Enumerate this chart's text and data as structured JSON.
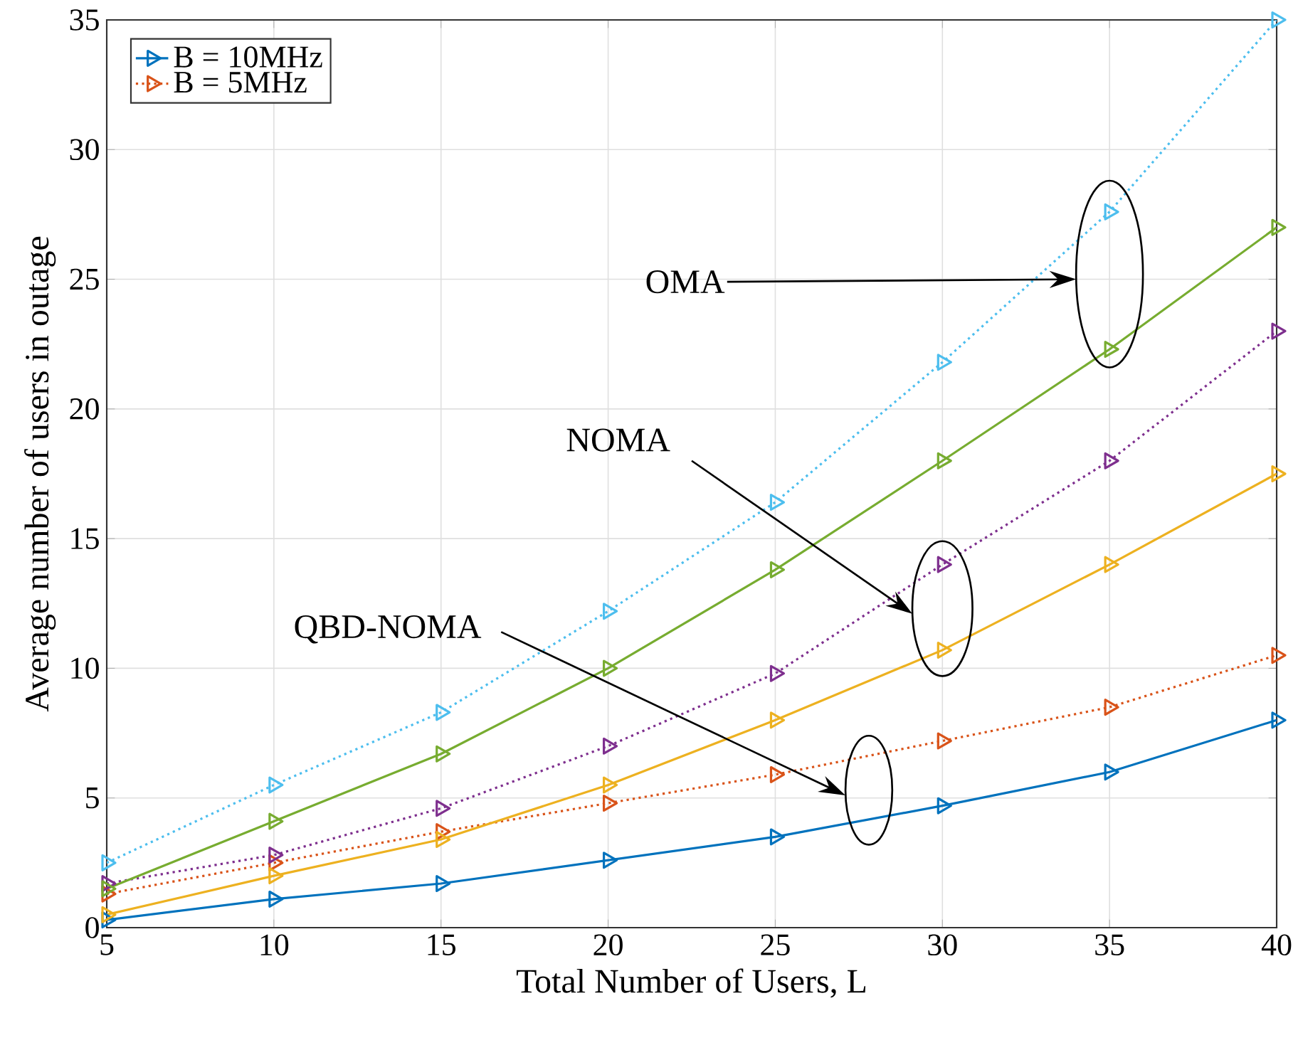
{
  "chart_data": {
    "type": "line",
    "xlabel": "Total Number of Users, L",
    "ylabel": "Average number of users in outage",
    "x": [
      5,
      10,
      15,
      20,
      25,
      30,
      35,
      40
    ],
    "series": [
      {
        "name": "B = 10MHz",
        "color": "#0072bd",
        "line_style": "solid",
        "values": [
          0.3,
          1.1,
          1.7,
          2.6,
          3.5,
          4.7,
          6.0,
          8.0
        ]
      },
      {
        "name": "B = 5MHz",
        "color": "#d95319",
        "line_style": "dotted",
        "values": [
          1.3,
          2.5,
          3.7,
          4.8,
          5.9,
          7.2,
          8.5,
          10.5
        ]
      },
      {
        "color": "#edb120",
        "line_style": "solid",
        "values": [
          0.5,
          2.0,
          3.4,
          5.5,
          8.0,
          10.7,
          14.0,
          17.5
        ]
      },
      {
        "color": "#7e2f8e",
        "line_style": "dotted",
        "values": [
          1.7,
          2.8,
          4.6,
          7.0,
          9.8,
          14.0,
          18.0,
          23.0
        ]
      },
      {
        "color": "#77ac30",
        "line_style": "solid",
        "values": [
          1.5,
          4.1,
          6.7,
          10.0,
          13.8,
          18.0,
          22.3,
          27.0
        ]
      },
      {
        "color": "#4dbeee",
        "line_style": "dotted",
        "values": [
          2.5,
          5.5,
          8.3,
          12.2,
          16.4,
          21.8,
          27.6,
          35.0
        ]
      }
    ],
    "annotations": [
      "OMA",
      "NOMA",
      "QBD-NOMA"
    ],
    "xlim": [
      5,
      40
    ],
    "ylim": [
      0,
      35
    ],
    "xticks": [
      5,
      10,
      15,
      20,
      25,
      30,
      35,
      40
    ],
    "yticks": [
      0,
      5,
      10,
      15,
      20,
      25,
      30,
      35
    ],
    "grid": true,
    "legend": "top left",
    "marker": "triangle"
  }
}
